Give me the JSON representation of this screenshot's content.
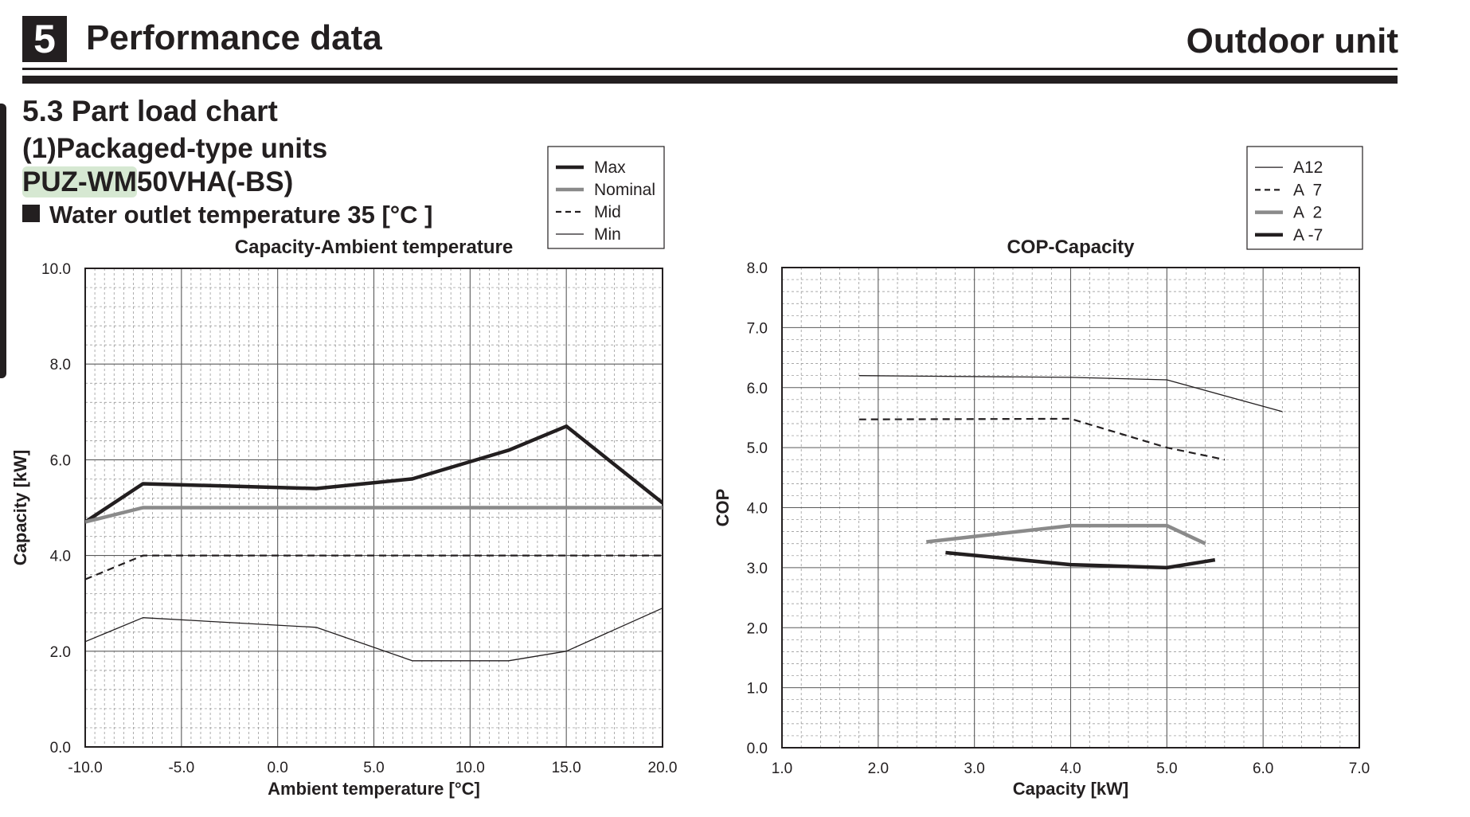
{
  "header": {
    "section_number": "5",
    "title": "Performance data",
    "right_title": "Outdoor unit"
  },
  "headings": {
    "section": "5.3 Part load chart",
    "subsection": "(1)Packaged-type units",
    "model_highlight": "PUZ-WM",
    "model_rest": "50VHA(-BS)",
    "condition": "Water outlet temperature 35 [°C ]"
  },
  "colors": {
    "dark": "#231f20",
    "gray": "#8a8a8a",
    "highlight": "#d6e8d2"
  },
  "chart_data": [
    {
      "type": "line",
      "title": "Capacity-Ambient temperature",
      "xlabel": "Ambient temperature [°C]",
      "ylabel": "Capacity [kW]",
      "xlim": [
        -10,
        20
      ],
      "ylim": [
        0,
        10
      ],
      "xticks": [
        -10,
        -5,
        0,
        5,
        10,
        15,
        20
      ],
      "xtick_labels": [
        "-10.0",
        "-5.0",
        "0.0",
        "5.0",
        "10.0",
        "15.0",
        "20.0"
      ],
      "yticks": [
        0,
        2,
        4,
        6,
        8,
        10
      ],
      "ytick_labels": [
        "0.0",
        "2.0",
        "4.0",
        "6.0",
        "8.0",
        "10.0"
      ],
      "grid": true,
      "legend_position": "top, above chart",
      "series": [
        {
          "name": "Max",
          "style": "thick-dark",
          "x": [
            -10,
            -7,
            2,
            7,
            12,
            15,
            20
          ],
          "y": [
            4.7,
            5.5,
            5.4,
            5.6,
            6.2,
            6.7,
            5.1
          ]
        },
        {
          "name": "Nominal",
          "style": "thick-gray",
          "x": [
            -10,
            -7,
            20
          ],
          "y": [
            4.7,
            5.0,
            5.0
          ]
        },
        {
          "name": "Mid",
          "style": "dashed",
          "x": [
            -10,
            -7,
            20
          ],
          "y": [
            3.5,
            4.0,
            4.0
          ]
        },
        {
          "name": "Min",
          "style": "thin",
          "x": [
            -10,
            -7,
            2,
            7,
            12,
            15,
            20
          ],
          "y": [
            2.2,
            2.7,
            2.5,
            1.8,
            1.8,
            2.0,
            2.9
          ]
        }
      ]
    },
    {
      "type": "line",
      "title": "COP-Capacity",
      "xlabel": "Capacity [kW]",
      "ylabel": "COP",
      "xlim": [
        1,
        7
      ],
      "ylim": [
        0,
        8
      ],
      "xticks": [
        1,
        2,
        3,
        4,
        5,
        6,
        7
      ],
      "xtick_labels": [
        "1.0",
        "2.0",
        "3.0",
        "4.0",
        "5.0",
        "6.0",
        "7.0"
      ],
      "yticks": [
        0,
        1,
        2,
        3,
        4,
        5,
        6,
        7,
        8
      ],
      "ytick_labels": [
        "0.0",
        "1.0",
        "2.0",
        "3.0",
        "4.0",
        "5.0",
        "6.0",
        "7.0",
        "8.0"
      ],
      "grid": true,
      "legend_position": "top-right, above chart",
      "series": [
        {
          "name": "A12",
          "style": "thin",
          "x": [
            1.8,
            4.0,
            5.0,
            6.2
          ],
          "y": [
            6.2,
            6.17,
            6.13,
            5.6
          ]
        },
        {
          "name": "A  7",
          "style": "dashed",
          "x": [
            1.8,
            4.0,
            5.0,
            5.6
          ],
          "y": [
            5.47,
            5.48,
            5.0,
            4.8
          ]
        },
        {
          "name": "A  2",
          "style": "thick-gray",
          "x": [
            2.5,
            4.0,
            5.0,
            5.4
          ],
          "y": [
            3.43,
            3.7,
            3.7,
            3.4
          ]
        },
        {
          "name": "A -7",
          "style": "thick-dark",
          "x": [
            2.7,
            4.0,
            5.0,
            5.5
          ],
          "y": [
            3.25,
            3.05,
            3.0,
            3.13
          ]
        }
      ]
    }
  ]
}
